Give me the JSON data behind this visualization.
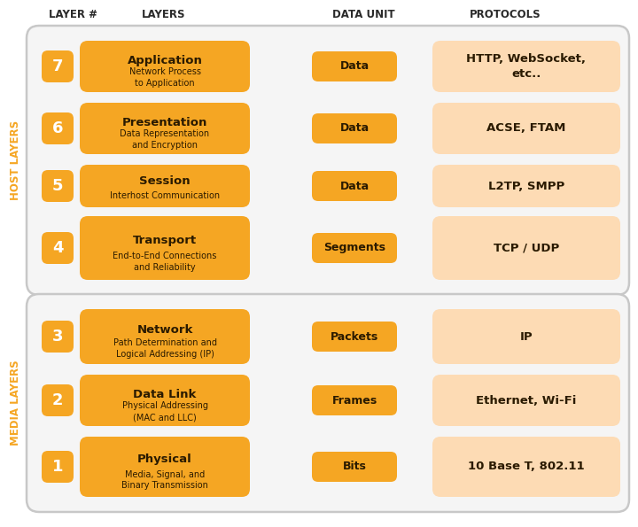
{
  "title_row": [
    "LAYER #",
    "LAYERS",
    "DATA UNIT",
    "PROTOCOLS"
  ],
  "host_label": "HOST LAYERS",
  "media_label": "MEDIA LAYERS",
  "layers": [
    {
      "num": "7",
      "name": "Application",
      "desc": "Network Process\nto Application",
      "unit": "Data",
      "protocols": "HTTP, WebSocket,\netc..",
      "group": "host"
    },
    {
      "num": "6",
      "name": "Presentation",
      "desc": "Data Representation\nand Encryption",
      "unit": "Data",
      "protocols": "ACSE, FTAM",
      "group": "host"
    },
    {
      "num": "5",
      "name": "Session",
      "desc": "Interhost Communication",
      "unit": "Data",
      "protocols": "L2TP, SMPP",
      "group": "host"
    },
    {
      "num": "4",
      "name": "Transport",
      "desc": "End-to-End Connections\nand Reliability",
      "unit": "Segments",
      "protocols": "TCP / UDP",
      "group": "host"
    },
    {
      "num": "3",
      "name": "Network",
      "desc": "Path Determination and\nLogical Addressing (IP)",
      "unit": "Packets",
      "protocols": "IP",
      "group": "media"
    },
    {
      "num": "2",
      "name": "Data Link",
      "desc": "Physical Addressing\n(MAC and LLC)",
      "unit": "Frames",
      "protocols": "Ethernet, Wi-Fi",
      "group": "media"
    },
    {
      "num": "1",
      "name": "Physical",
      "desc": "Media, Signal, and\nBinary Transmission",
      "unit": "Bits",
      "protocols": "10 Base T, 802.11",
      "group": "media"
    }
  ],
  "orange": "#F5A623",
  "orange_light": "#FDDBB4",
  "text_dark": "#2A1A00",
  "border_color": "#C8C8C8",
  "bg_group": "#F5F5F5",
  "header_color": "#2A2A2A",
  "side_label_color": "#F5A623"
}
